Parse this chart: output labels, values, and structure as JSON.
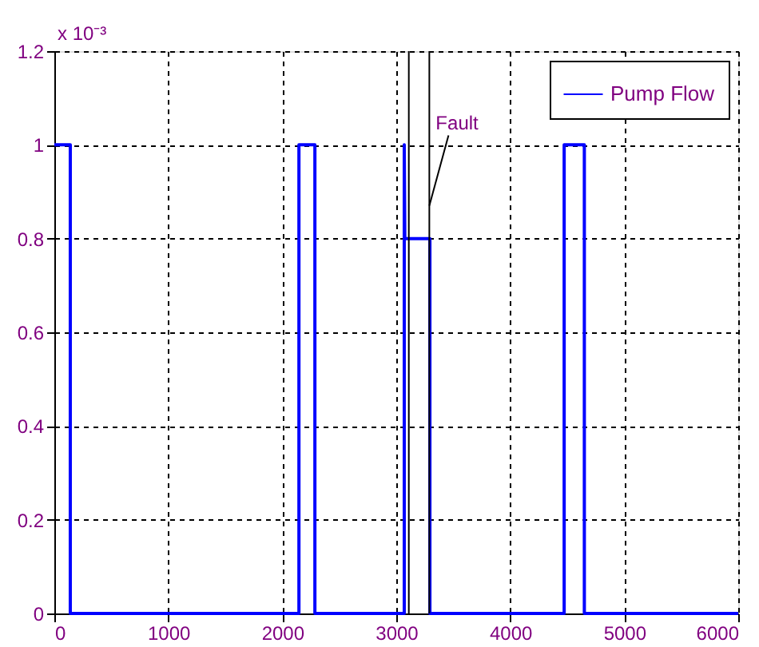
{
  "chart_data": {
    "type": "line",
    "x": [
      0,
      140,
      140,
      2146,
      2146,
      2286,
      2286,
      3070,
      3070,
      3075,
      3295,
      3295,
      4473,
      4473,
      4650,
      4650,
      6000
    ],
    "series": [
      {
        "name": "Pump Flow",
        "color": "#0000ff",
        "values": [
          1.0,
          1.0,
          0,
          0,
          1.0,
          1.0,
          0,
          0,
          1.0,
          0.8,
          0.8,
          0,
          0,
          1.0,
          1.0,
          0,
          0
        ]
      }
    ],
    "xlim": [
      0,
      6000
    ],
    "xticks": [
      0,
      1000,
      2000,
      3000,
      4000,
      5000,
      6000
    ],
    "ylim": [
      0,
      1.2
    ],
    "yticks": [
      0,
      0.2,
      0.4,
      0.6,
      0.8,
      1,
      1.2
    ],
    "ref_lines": [
      {
        "axis": "x",
        "value": 3110,
        "color": "#000000"
      },
      {
        "axis": "x",
        "value": 3290,
        "color": "#000000"
      }
    ],
    "annotations": [
      "x 10⁻³",
      {
        "text": "Fault",
        "x": 3290,
        "y": 0.87
      }
    ],
    "grid": true,
    "legend": "top right",
    "line_style": "solid",
    "marker": "none"
  }
}
